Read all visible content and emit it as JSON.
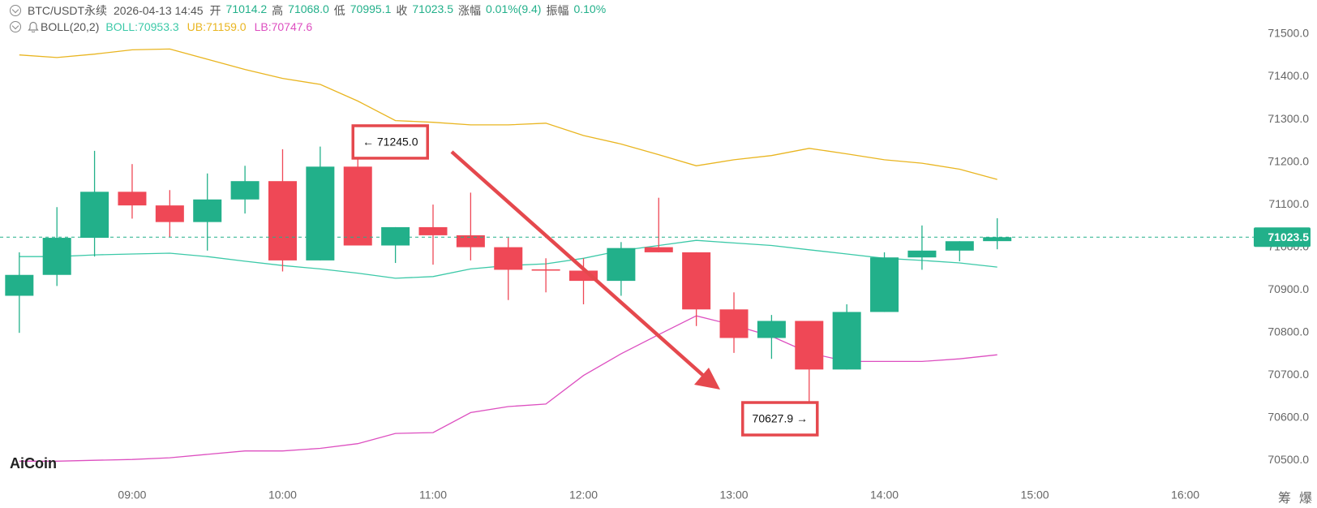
{
  "header": {
    "symbol": "BTC/USDT永续",
    "time": "2026-04-13 14:45",
    "fields": [
      {
        "label": "开",
        "value": "71014.2"
      },
      {
        "label": "高",
        "value": "71068.0"
      },
      {
        "label": "低",
        "value": "70995.1"
      },
      {
        "label": "收",
        "value": "71023.5"
      },
      {
        "label": "涨幅",
        "value": "0.01%(9.4)"
      },
      {
        "label": "振幅",
        "value": "0.10%"
      }
    ],
    "indicator": "BOLL(20,2)"
  },
  "watermark": "AiCoin",
  "footer_icons": [
    "筹",
    "爆"
  ],
  "chart_data": {
    "type": "candlestick",
    "x": [
      "08:15",
      "08:30",
      "08:45",
      "09:00",
      "09:15",
      "09:30",
      "09:45",
      "10:00",
      "10:15",
      "10:30",
      "10:45",
      "11:00",
      "11:15",
      "11:30",
      "11:45",
      "12:00",
      "12:15",
      "12:30",
      "12:45",
      "13:00",
      "13:15",
      "13:30",
      "13:45",
      "14:00",
      "14:15",
      "14:30",
      "14:45"
    ],
    "open": [
      70886,
      70935,
      71022,
      71130,
      71098,
      71059,
      71112,
      71155,
      70969,
      71189,
      71004,
      71047,
      71028,
      71000,
      70948,
      70945,
      70921,
      71000,
      70988,
      70854,
      70787,
      70827,
      70713,
      70848,
      70976,
      70992,
      71014.2
    ],
    "high": [
      70988,
      71094,
      71226,
      71195,
      71134,
      71173,
      71191,
      71230,
      71236,
      71245.0,
      71047,
      71100,
      71128,
      71022,
      70974,
      70974,
      71012,
      71116,
      70988,
      70894,
      70841,
      70827,
      70866,
      70988,
      71051,
      71014,
      71068.0
    ],
    "low": [
      70799,
      70909,
      70978,
      71067,
      71024,
      70992,
      71079,
      70943,
      70969,
      71004,
      70963,
      70959,
      70969,
      70876,
      70894,
      70866,
      70886,
      70988,
      70815,
      70752,
      70738,
      70627.9,
      70713,
      70848,
      70947,
      70967,
      70995.1
    ],
    "close": [
      70935,
      71022,
      71130,
      71098,
      71059,
      71112,
      71155,
      70969,
      71189,
      71004,
      71047,
      71028,
      71000,
      70947,
      70945,
      70921,
      70998,
      70988,
      70854,
      70787,
      70827,
      70713,
      70848,
      70976,
      70992,
      71014,
      71023.5
    ],
    "up_color": "#22b08a",
    "down_color": "#ef4856",
    "series": [
      {
        "name": "BOLL:70953.3",
        "color": "#3cc9a8",
        "values": [
          70978,
          70978,
          70982,
          70984,
          70986,
          70978,
          70967,
          70957,
          70949,
          70939,
          70927,
          70931,
          70949,
          70957,
          70961,
          70974,
          70992,
          71004,
          71016,
          71010,
          71004,
          70994,
          70984,
          70974,
          70969,
          70963,
          70953.3
        ]
      },
      {
        "name": "UB:71159.0",
        "color": "#e9b520",
        "values": [
          71451,
          71445,
          71453,
          71463,
          71465,
          71441,
          71417,
          71396,
          71382,
          71343,
          71297,
          71293,
          71287,
          71287,
          71291,
          71262,
          71242,
          71217,
          71191,
          71205,
          71215,
          71232,
          71219,
          71205,
          71197,
          71183,
          71159.0
        ]
      },
      {
        "name": "LB:70747.6",
        "color": "#dd4fc0",
        "values": [
          70498,
          70498,
          70500,
          70502,
          70506,
          70514,
          70522,
          70522,
          70528,
          70539,
          70563,
          70565,
          70612,
          70626,
          70632,
          70699,
          70750,
          70795,
          70839,
          70817,
          70791,
          70752,
          70732,
          70732,
          70732,
          70738,
          70747.6
        ]
      }
    ],
    "xticks": [
      "09:00",
      "10:00",
      "11:00",
      "12:00",
      "13:00",
      "14:00",
      "15:00",
      "16:00"
    ],
    "ylim": [
      70450,
      71580
    ],
    "yticks": [
      {
        "value": 70500,
        "label": "70500.0"
      },
      {
        "value": 70600,
        "label": "70600.0"
      },
      {
        "value": 70700,
        "label": "70700.0"
      },
      {
        "value": 70800,
        "label": "70800.0"
      },
      {
        "value": 70900,
        "label": "70900.0"
      },
      {
        "value": 71000,
        "label": "71000.0"
      },
      {
        "value": 71100,
        "label": "71100.0"
      },
      {
        "value": 71200,
        "label": "71200.0"
      },
      {
        "value": 71300,
        "label": "71300.0"
      },
      {
        "value": 71400,
        "label": "71400.0"
      },
      {
        "value": 71500,
        "label": "71500.0"
      }
    ],
    "last_price": 71023.5,
    "annotations": [
      {
        "value": 71245.0,
        "label": "← 71245.0"
      },
      {
        "value": 70627.9,
        "label": "70627.9 →"
      }
    ]
  }
}
